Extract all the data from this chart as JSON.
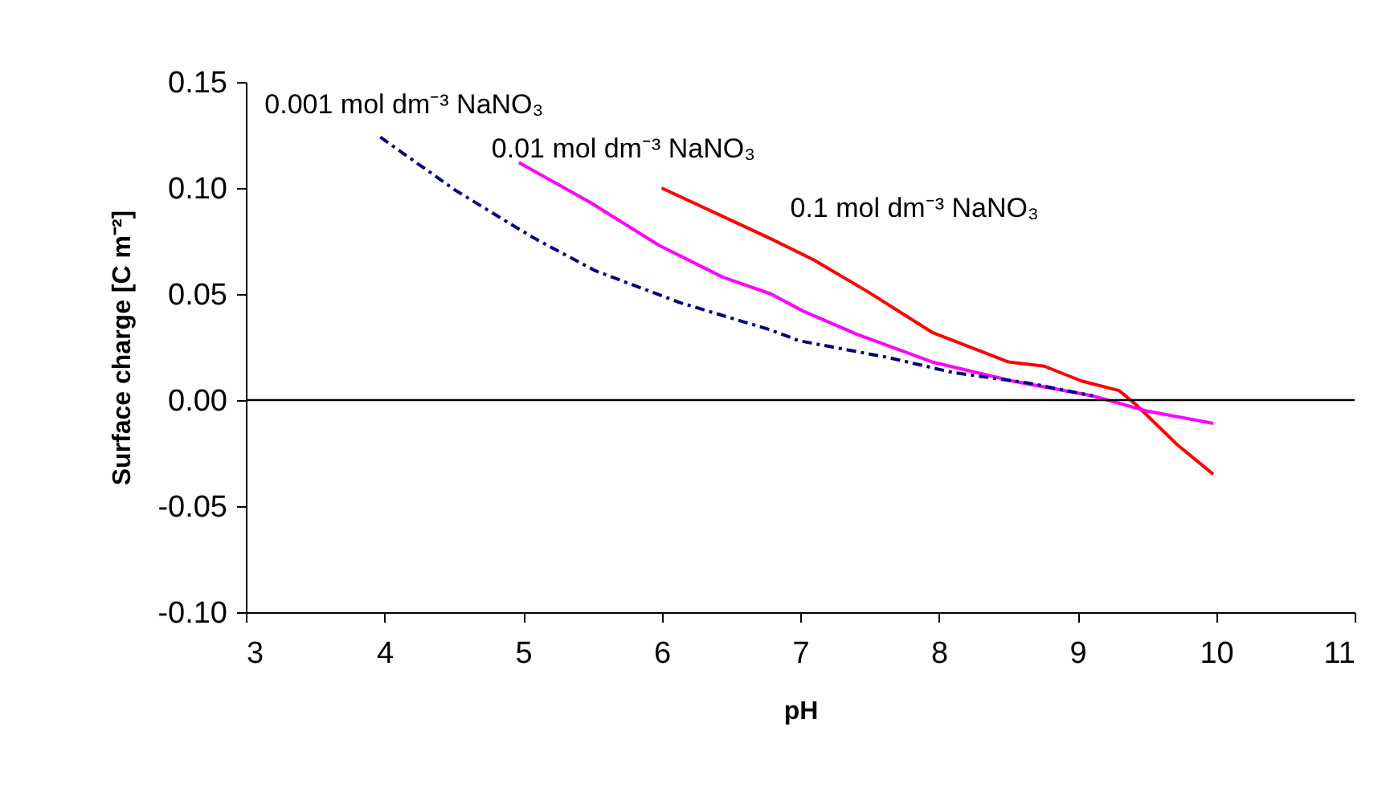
{
  "chart_data": {
    "type": "line",
    "xlabel": "pH",
    "ylabel": "Surface charge [C m⁻²]",
    "xlim": [
      3,
      11
    ],
    "xticks": [
      3,
      4,
      5,
      6,
      7,
      8,
      9,
      10,
      11
    ],
    "ylim": [
      -0.1,
      0.15
    ],
    "yticks": [
      {
        "value": -0.1,
        "label": "-0.10"
      },
      {
        "value": -0.05,
        "label": "-0.05"
      },
      {
        "value": 0,
        "label": "0.00"
      },
      {
        "value": 0.05,
        "label": "0.05"
      },
      {
        "value": 0.1,
        "label": "0.10"
      },
      {
        "value": 0.15,
        "label": "0.15"
      }
    ],
    "grid": false,
    "ref_lines": [
      {
        "axis": "y",
        "value": 0,
        "color": "#000000"
      }
    ],
    "series": [
      {
        "name": "0.001 mol dm⁻³ NaNO₃",
        "color": "#000080",
        "line_style": "dashed",
        "x": [
          3.97,
          4.51,
          4.86,
          5.09,
          5.52,
          6.13,
          6.79,
          6.99,
          7.64,
          8.1,
          8.65,
          9.11
        ],
        "values": [
          0.124,
          0.099,
          0.085,
          0.076,
          0.061,
          0.046,
          0.033,
          0.028,
          0.02,
          0.013,
          0.008,
          0.002
        ]
      },
      {
        "name": "0.01 mol dm⁻³ NaNO₃",
        "color": "#ff00ff",
        "line_style": "solid",
        "x": [
          4.97,
          5.49,
          5.98,
          6.44,
          6.79,
          7.02,
          7.41,
          7.95,
          8.53,
          9.11,
          9.49,
          9.98
        ],
        "values": [
          0.112,
          0.093,
          0.073,
          0.058,
          0.05,
          0.042,
          0.031,
          0.018,
          0.009,
          0.002,
          -0.005,
          -0.011
        ]
      },
      {
        "name": "0.1 mol dm⁻³ NaNO₃",
        "color": "#ff0000",
        "line_style": "solid",
        "x": [
          6.0,
          6.79,
          7.1,
          7.49,
          7.95,
          8.5,
          8.76,
          9.03,
          9.3,
          9.42,
          9.72,
          9.98
        ],
        "values": [
          0.1,
          0.076,
          0.066,
          0.051,
          0.032,
          0.018,
          0.016,
          0.009,
          0.0045,
          -0.002,
          -0.021,
          -0.035
        ]
      }
    ]
  }
}
